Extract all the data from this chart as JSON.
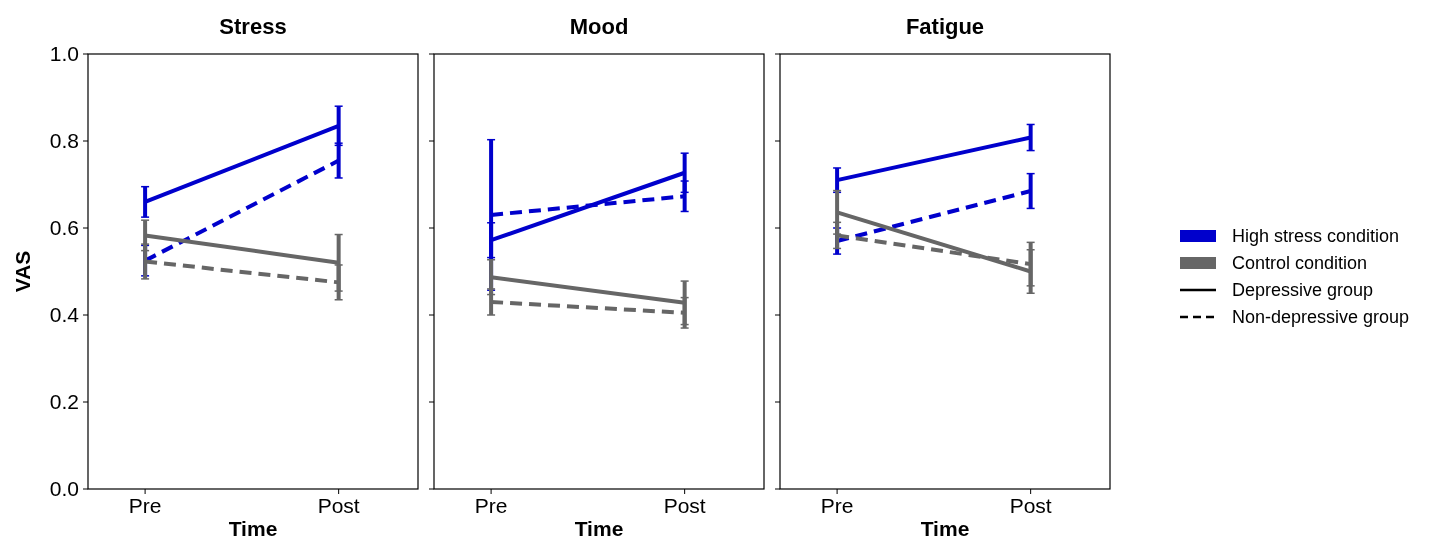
{
  "chart_data": [
    {
      "type": "line",
      "title": "Stress",
      "xlabel": "Time",
      "ylabel": "VAS",
      "categories": [
        "Pre",
        "Post"
      ],
      "ylim": [
        0,
        1
      ],
      "yticks": [
        {
          "value": 0,
          "label": "0.0"
        },
        0.2,
        0.4,
        0.6,
        0.8,
        {
          "value": 1,
          "label": "1.0"
        }
      ],
      "marker": "none",
      "series": [
        {
          "color": "#0000cc",
          "line_style": "solid",
          "values": [
            0.66,
            0.835
          ],
          "errors": [
            0.035,
            0.045
          ]
        },
        {
          "color": "#0000cc",
          "line_style": "dashed",
          "values": [
            0.525,
            0.755
          ],
          "errors": [
            0.035,
            0.04
          ]
        },
        {
          "color": "#666666",
          "line_style": "solid",
          "values": [
            0.583,
            0.52
          ],
          "errors": [
            0.035,
            0.065
          ]
        },
        {
          "color": "#666666",
          "line_style": "dashed",
          "values": [
            0.523,
            0.475
          ],
          "errors": [
            0.04,
            0.04
          ]
        }
      ]
    },
    {
      "type": "line",
      "title": "Mood",
      "xlabel": "Time",
      "categories": [
        "Pre",
        "Post"
      ],
      "ylim": [
        0,
        1
      ],
      "yticks": [
        0,
        0.2,
        0.4,
        0.6,
        0.8,
        1
      ],
      "tick_labels": "x",
      "marker": "none",
      "series": [
        {
          "color": "#0000cc",
          "line_style": "solid",
          "values": [
            0.572,
            0.727
          ],
          "errors": [
            0.04,
            0.045
          ]
        },
        {
          "color": "#0000cc",
          "line_style": "dashed",
          "values": [
            0.63,
            0.673
          ],
          "errors": [
            0.173,
            0.035
          ]
        },
        {
          "color": "#666666",
          "line_style": "solid",
          "values": [
            0.487,
            0.428
          ],
          "errors": [
            0.04,
            0.05
          ]
        },
        {
          "color": "#666666",
          "line_style": "dashed",
          "values": [
            0.43,
            0.405
          ],
          "errors": [
            0.03,
            0.035
          ]
        }
      ]
    },
    {
      "type": "line",
      "title": "Fatigue",
      "xlabel": "Time",
      "categories": [
        "Pre",
        "Post"
      ],
      "ylim": [
        0,
        1
      ],
      "yticks": [
        0,
        0.2,
        0.4,
        0.6,
        0.8,
        1
      ],
      "tick_labels": "x",
      "marker": "none",
      "series": [
        {
          "color": "#0000cc",
          "line_style": "solid",
          "values": [
            0.71,
            0.808
          ],
          "errors": [
            0.028,
            0.03
          ]
        },
        {
          "color": "#0000cc",
          "line_style": "dashed",
          "values": [
            0.57,
            0.685
          ],
          "errors": [
            0.03,
            0.04
          ]
        },
        {
          "color": "#666666",
          "line_style": "solid",
          "values": [
            0.636,
            0.5
          ],
          "errors": [
            0.05,
            0.05
          ]
        },
        {
          "color": "#666666",
          "line_style": "dashed",
          "values": [
            0.583,
            0.517
          ],
          "errors": [
            0.03,
            0.05
          ]
        }
      ]
    },
    {
      "type": "other",
      "series": [
        {
          "type": "bar",
          "name": "High stress condition",
          "color": "#0000cc"
        },
        {
          "type": "bar",
          "name": "Control condition",
          "color": "#666666"
        },
        {
          "type": "line",
          "name": "Depressive group",
          "color": "#000000",
          "line_style": "solid"
        },
        {
          "type": "line",
          "name": "Non-depressive group",
          "color": "#000000",
          "line_style": "dashed"
        }
      ]
    }
  ]
}
